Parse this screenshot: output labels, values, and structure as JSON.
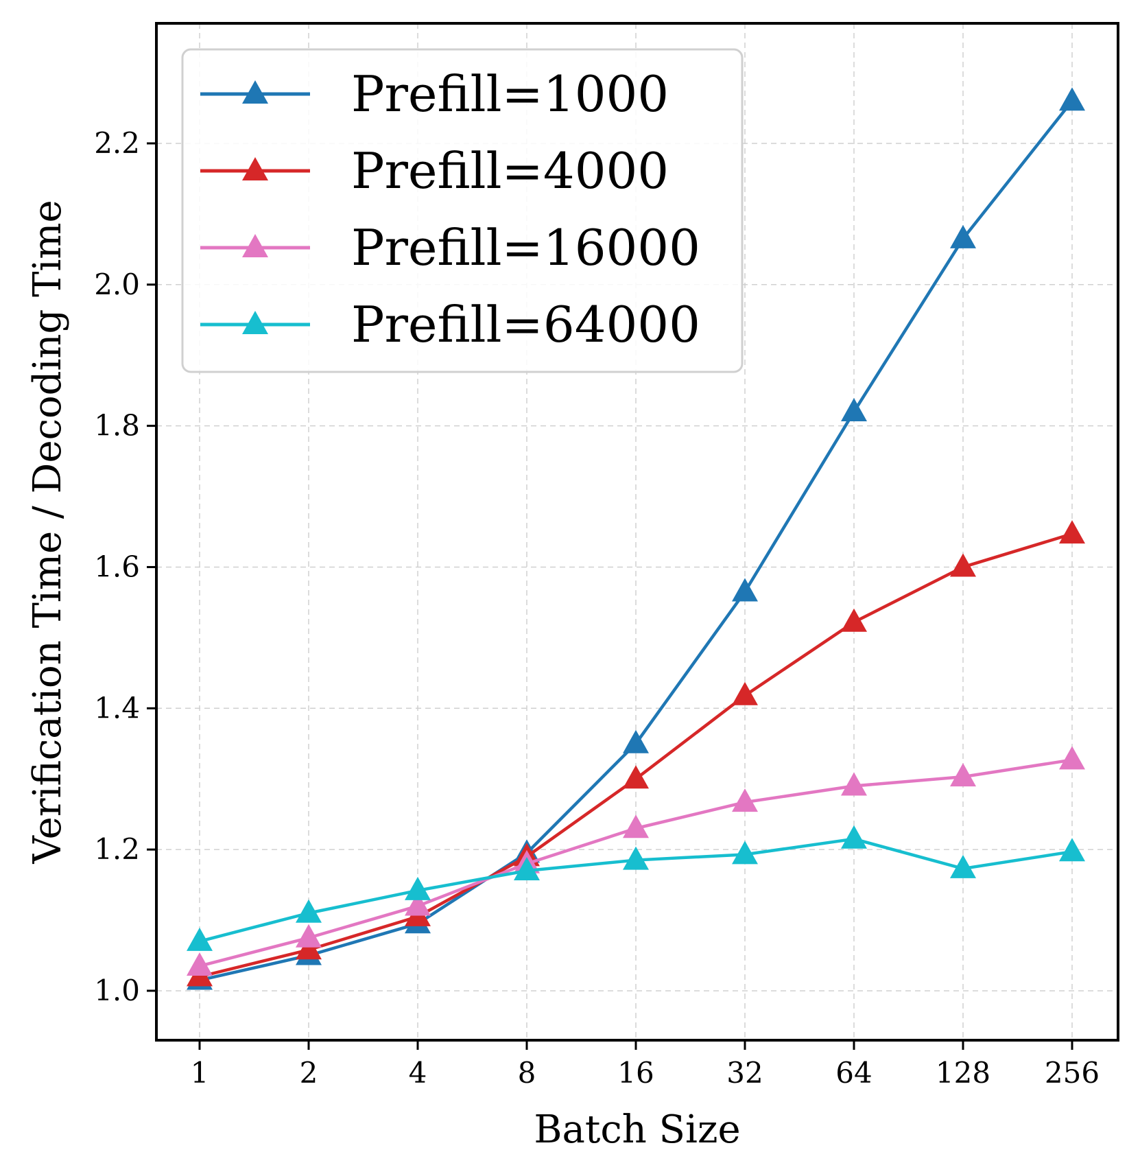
{
  "chart_data": {
    "type": "line",
    "title": "",
    "xlabel": "Batch Size",
    "ylabel": "Verification Time / Decoding Time",
    "categories": [
      "1",
      "2",
      "4",
      "8",
      "16",
      "32",
      "64",
      "128",
      "256"
    ],
    "yticks": [
      "1.0",
      "1.2",
      "1.4",
      "1.6",
      "1.8",
      "2.0",
      "2.2"
    ],
    "ylim": [
      0.93,
      2.37
    ],
    "grid": true,
    "legend_position": "top-left",
    "marker": "triangle-up",
    "series": [
      {
        "name": "Prefill=1000",
        "color": "#1f77b4",
        "values": [
          1.015,
          1.05,
          1.095,
          1.195,
          1.35,
          1.565,
          1.82,
          2.065,
          2.26
        ]
      },
      {
        "name": "Prefill=4000",
        "color": "#d62728",
        "values": [
          1.02,
          1.058,
          1.105,
          1.19,
          1.3,
          1.418,
          1.522,
          1.6,
          1.647
        ]
      },
      {
        "name": "Prefill=16000",
        "color": "#e377c2",
        "values": [
          1.035,
          1.075,
          1.12,
          1.18,
          1.23,
          1.267,
          1.29,
          1.303,
          1.327
        ]
      },
      {
        "name": "Prefill=64000",
        "color": "#17becf",
        "values": [
          1.07,
          1.11,
          1.142,
          1.17,
          1.185,
          1.193,
          1.215,
          1.173,
          1.197
        ]
      }
    ]
  }
}
